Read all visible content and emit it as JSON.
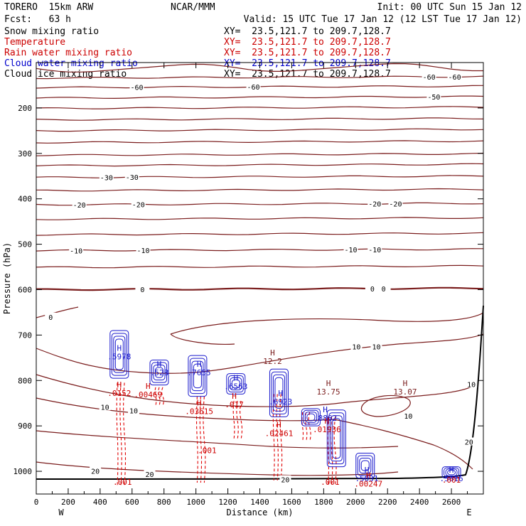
{
  "header": {
    "model": "TORERO  15km ARW",
    "org": "NCAR/MMM",
    "init": "Init: 00 UTC Sun 15 Jan 12",
    "fcst": "Fcst:   63 h",
    "valid": "Valid: 15 UTC Tue 17 Jan 12 (12 LST Tue 17 Jan 12)"
  },
  "fields": [
    {
      "name": "Snow mixing ratio",
      "xy": "XY=  23.5,121.7 to 209.7,128.7",
      "color": "#000000"
    },
    {
      "name": "Temperature",
      "xy": "XY=  23.5,121.7 to 209.7,128.7",
      "color": "#cc0000"
    },
    {
      "name": "Rain water mixing ratio",
      "xy": "XY=  23.5,121.7 to 209.7,128.7",
      "color": "#cc0000"
    },
    {
      "name": "Cloud water mixing ratio",
      "xy": "XY=  23.5,121.7 to 209.7,128.7",
      "color": "#0000cc"
    },
    {
      "name": "Cloud ice mixing ratio",
      "xy": "XY=  23.5,121.7 to 209.7,128.7",
      "color": "#000000"
    }
  ],
  "chart_data": {
    "type": "contour-cross-section",
    "xlabel": "Distance (km)",
    "ylabel": "Pressure (hPa)",
    "xlim": [
      0,
      2800
    ],
    "ylim": [
      1050,
      100
    ],
    "x_ticks": [
      0,
      200,
      400,
      600,
      800,
      1000,
      1200,
      1400,
      1600,
      1800,
      2000,
      2200,
      2400,
      2600
    ],
    "x_tick_labels": [
      "0",
      "200",
      "400",
      "600",
      "800",
      "1000",
      "1200",
      "1400",
      "1600",
      "1800",
      "2000",
      "2200",
      "2400",
      "2600"
    ],
    "y_ticks": [
      200,
      300,
      400,
      500,
      600,
      700,
      800,
      900,
      1000
    ],
    "y_tick_labels": [
      "200",
      "300",
      "400",
      "500",
      "600",
      "700",
      "800",
      "900",
      "1000"
    ],
    "left_end_label": "W",
    "right_end_label": "E",
    "temperature_color": "#7a1c1c",
    "rain_color": "#e00000",
    "cloud_color": "#1a1acc",
    "temperature_contours": [
      {
        "p": 113,
        "label": "",
        "label_x": null
      },
      {
        "p": 134,
        "label": "-60",
        "label_x": [
          2460,
          2620
        ]
      },
      {
        "p": 155,
        "label": "-60",
        "label_x": [
          630,
          1360
        ]
      },
      {
        "p": 178,
        "label": "-50",
        "label_x": [
          2490
        ]
      },
      {
        "p": 201,
        "label": "",
        "label_x": null
      },
      {
        "p": 226,
        "label": "",
        "label_x": null
      },
      {
        "p": 250,
        "label": "",
        "label_x": null
      },
      {
        "p": 276,
        "label": "",
        "label_x": null
      },
      {
        "p": 304,
        "label": "",
        "label_x": null
      },
      {
        "p": 327,
        "label": "",
        "label_x": null
      },
      {
        "p": 353,
        "label": "-30",
        "label_x": [
          440,
          600
        ]
      },
      {
        "p": 382,
        "label": "",
        "label_x": null
      },
      {
        "p": 413,
        "label": "-20",
        "label_x": [
          270,
          640,
          2120,
          2250
        ]
      },
      {
        "p": 445,
        "label": "",
        "label_x": null
      },
      {
        "p": 479,
        "label": "",
        "label_x": null
      },
      {
        "p": 514,
        "label": "-10",
        "label_x": [
          250,
          670,
          1970,
          2120
        ]
      },
      {
        "p": 551,
        "label": "",
        "label_x": null
      },
      {
        "p": 600,
        "label": "0",
        "label_x": [
          665,
          2105,
          2175
        ]
      }
    ],
    "contour_labels": [
      {
        "text": "0",
        "x": 90,
        "p": 660
      },
      {
        "text": "10",
        "x": 2005,
        "p": 725
      },
      {
        "text": "10",
        "x": 2130,
        "p": 725
      },
      {
        "text": "10",
        "x": 430,
        "p": 858
      },
      {
        "text": "10",
        "x": 610,
        "p": 866
      },
      {
        "text": "10",
        "x": 2330,
        "p": 878
      },
      {
        "text": "10",
        "x": 2725,
        "p": 808
      },
      {
        "text": "20",
        "x": 2710,
        "p": 935
      },
      {
        "text": "20",
        "x": 370,
        "p": 999
      },
      {
        "text": "20",
        "x": 710,
        "p": 1006
      },
      {
        "text": "20",
        "x": 1560,
        "p": 1018
      }
    ],
    "maxima": [
      {
        "letter": "H",
        "value": ".5978",
        "x": 520,
        "p": 735,
        "color": "#1a1acc"
      },
      {
        "letter": "H",
        "value": ".528",
        "x": 770,
        "p": 770,
        "color": "#1a1acc"
      },
      {
        "letter": "H",
        "value": ".7655",
        "x": 1020,
        "p": 770,
        "color": "#1a1acc"
      },
      {
        "letter": "H",
        "value": ".6563",
        "x": 1250,
        "p": 800,
        "color": "#1a1acc"
      },
      {
        "letter": "H",
        "value": ".6923",
        "x": 1530,
        "p": 834,
        "color": "#1a1acc"
      },
      {
        "letter": "H",
        "value": ".8862",
        "x": 1810,
        "p": 870,
        "color": "#1a1acc"
      },
      {
        "letter": "H",
        "value": ".5031",
        "x": 2070,
        "p": 1003,
        "color": "#1a1acc"
      },
      {
        "letter": "H",
        "value": ".5616",
        "x": 2600,
        "p": 1003,
        "color": "#1a1acc"
      },
      {
        "letter": "H",
        "value": ".0152",
        "x": 520,
        "p": 815,
        "color": "#cc0000"
      },
      {
        "letter": "H",
        "value": ".00469",
        "x": 700,
        "p": 818,
        "color": "#cc0000"
      },
      {
        "letter": "H",
        "value": ".03615",
        "x": 1020,
        "p": 855,
        "color": "#cc0000"
      },
      {
        "letter": "H",
        "value": ".017",
        "x": 1240,
        "p": 840,
        "color": "#cc0000"
      },
      {
        "letter": "H",
        "value": ".02461",
        "x": 1520,
        "p": 904,
        "color": "#cc0000"
      },
      {
        "letter": "H",
        "value": ".01936",
        "x": 1820,
        "p": 895,
        "color": "#cc0000"
      },
      {
        "letter": "H",
        "value": ".00247",
        "x": 2080,
        "p": 1015,
        "color": "#cc0000"
      },
      {
        "letter": "",
        "value": ".001",
        "x": 540,
        "p": 1030,
        "color": "#cc0000"
      },
      {
        "letter": "",
        "value": ".001",
        "x": 1070,
        "p": 960,
        "color": "#cc0000"
      },
      {
        "letter": "",
        "value": ".001",
        "x": 1840,
        "p": 1030,
        "color": "#cc0000"
      },
      {
        "letter": "",
        "value": ".001",
        "x": 2600,
        "p": 1025,
        "color": "#cc0000"
      },
      {
        "letter": "H",
        "value": "12.2",
        "x": 1480,
        "p": 745,
        "color": "#7a1c1c"
      },
      {
        "letter": "H",
        "value": "13.75",
        "x": 1830,
        "p": 812,
        "color": "#7a1c1c"
      },
      {
        "letter": "H",
        "value": "13.07",
        "x": 2310,
        "p": 812,
        "color": "#7a1c1c"
      }
    ],
    "cloud_cells": [
      {
        "x": 520,
        "p_top": 690,
        "p_bot": 795
      },
      {
        "x": 770,
        "p_top": 755,
        "p_bot": 810
      },
      {
        "x": 1010,
        "p_top": 745,
        "p_bot": 835
      },
      {
        "x": 1250,
        "p_top": 785,
        "p_bot": 830
      },
      {
        "x": 1520,
        "p_top": 775,
        "p_bot": 880
      },
      {
        "x": 1720,
        "p_top": 862,
        "p_bot": 900
      },
      {
        "x": 1880,
        "p_top": 865,
        "p_bot": 990
      },
      {
        "x": 2060,
        "p_top": 960,
        "p_bot": 1015
      },
      {
        "x": 2600,
        "p_top": 990,
        "p_bot": 1015
      }
    ],
    "rain_cells": [
      {
        "x": 530,
        "p_top": 805,
        "p_bot": 1030
      },
      {
        "x": 770,
        "p_top": 815,
        "p_bot": 855
      },
      {
        "x": 1030,
        "p_top": 835,
        "p_bot": 1025
      },
      {
        "x": 1260,
        "p_top": 845,
        "p_bot": 930
      },
      {
        "x": 1510,
        "p_top": 830,
        "p_bot": 1020
      },
      {
        "x": 1690,
        "p_top": 870,
        "p_bot": 935
      },
      {
        "x": 1850,
        "p_top": 880,
        "p_bot": 1030
      }
    ]
  }
}
